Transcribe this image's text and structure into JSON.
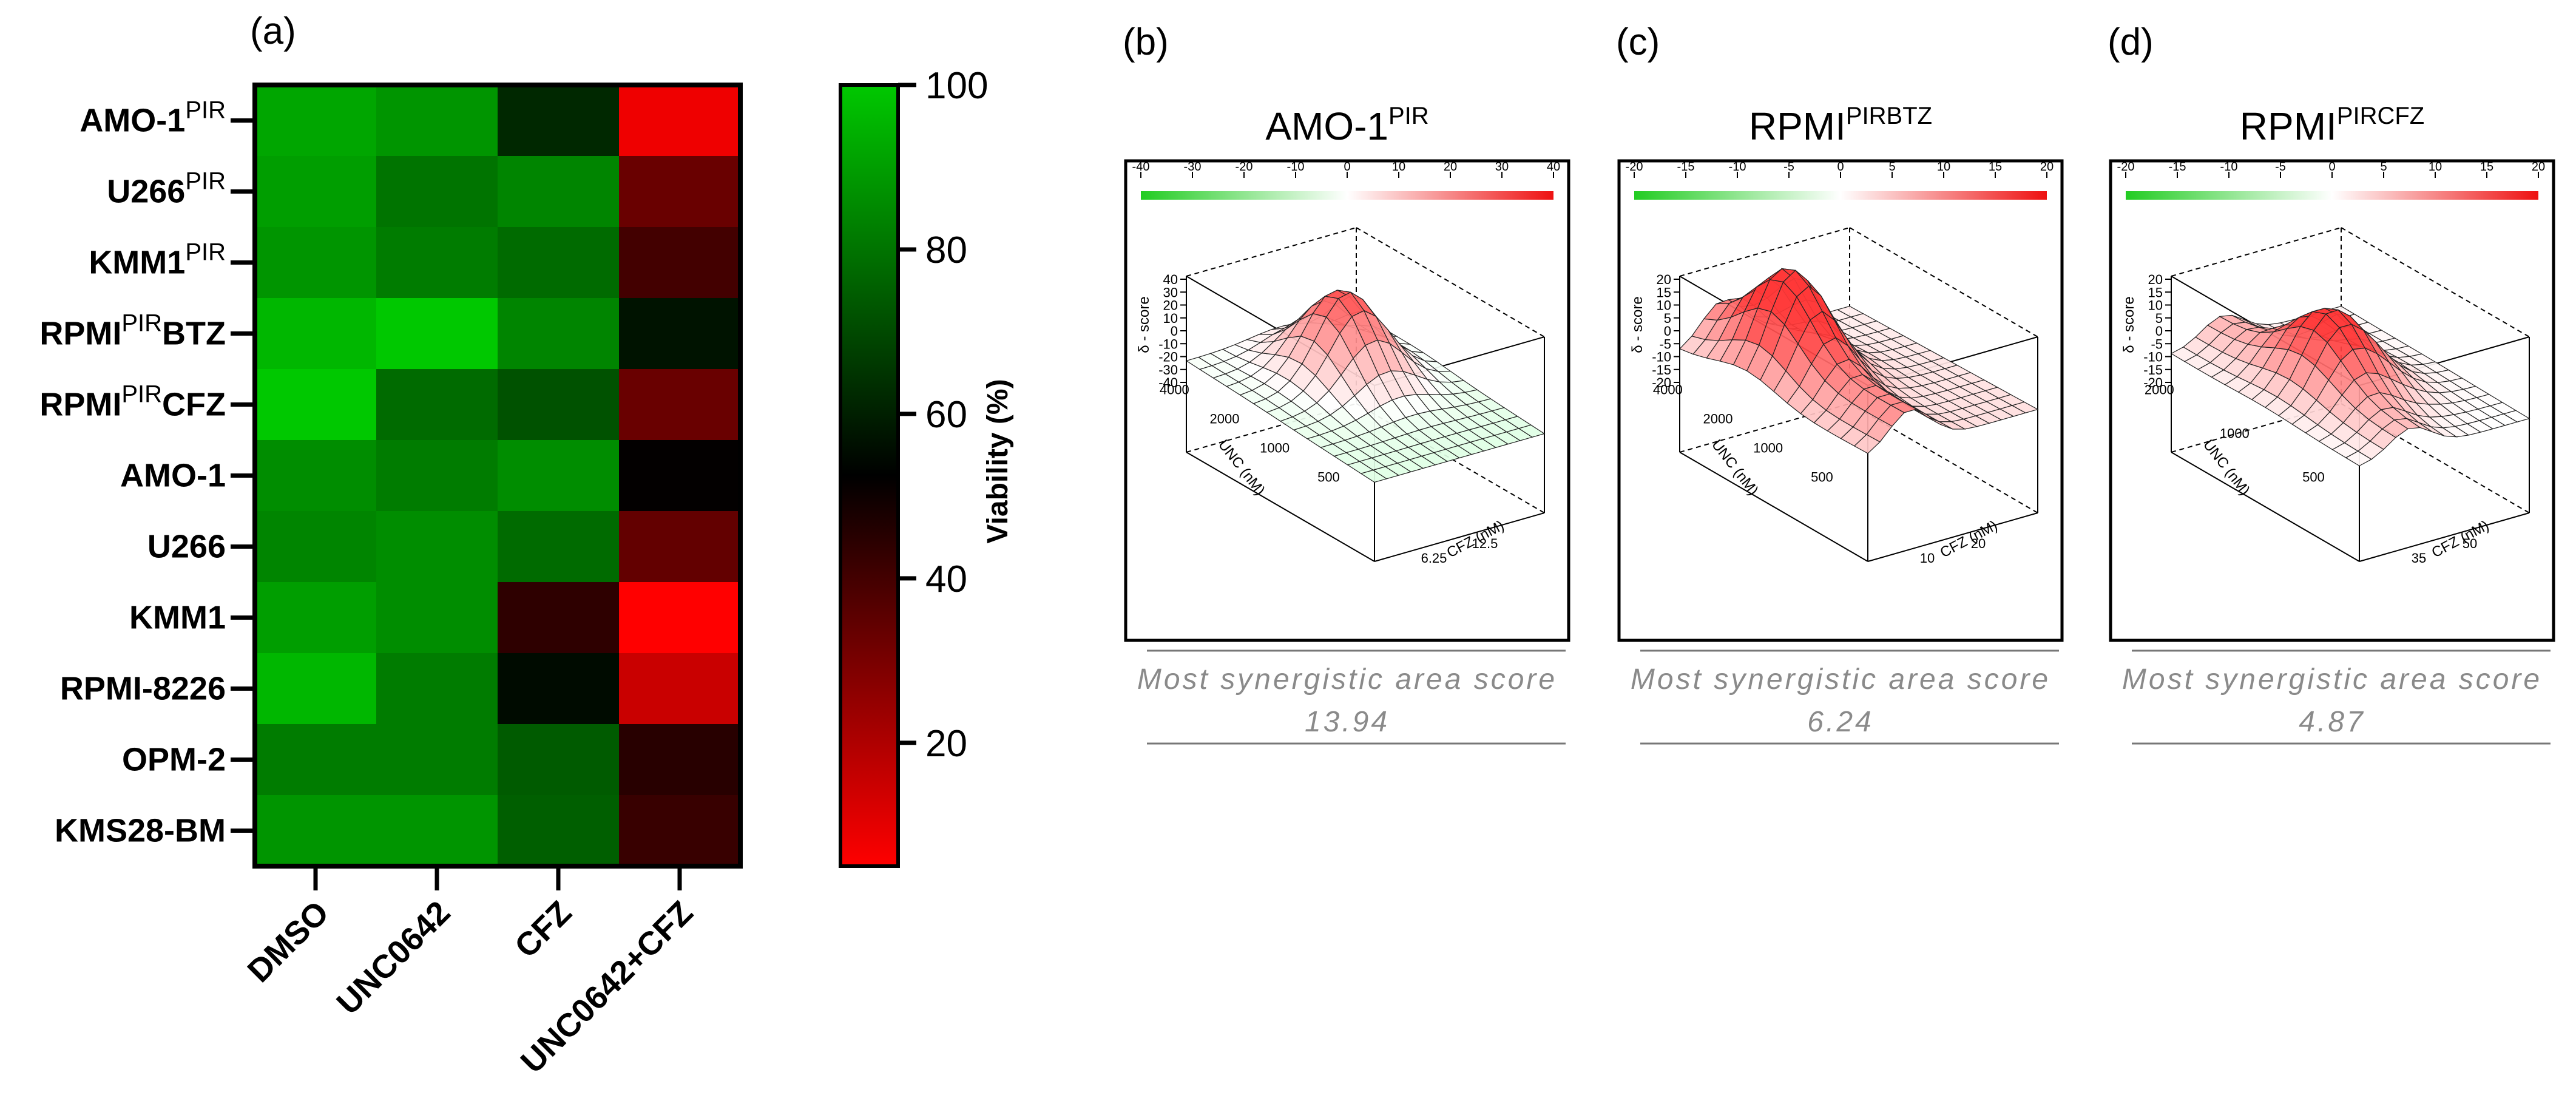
{
  "panel_a": {
    "panel_label": "(a)",
    "colorbar": {
      "title": "Viability (%)",
      "ticks": [
        "100",
        "80",
        "60",
        "40",
        "20"
      ],
      "colors": {
        "low": "#ff0000",
        "mid": "#000000",
        "high": "#00c800"
      }
    }
  },
  "chart_data": [
    {
      "type": "heatmap",
      "rows": [
        {
          "name": "AMO-1",
          "sup": "PIR",
          "suffix": ""
        },
        {
          "name": "U266",
          "sup": "PIR",
          "suffix": ""
        },
        {
          "name": "KMM1",
          "sup": "PIR",
          "suffix": ""
        },
        {
          "name": "RPMI",
          "sup": "PIR",
          "suffix": "BTZ"
        },
        {
          "name": "RPMI",
          "sup": "PIR",
          "suffix": "CFZ"
        },
        {
          "name": "AMO-1",
          "sup": "",
          "suffix": ""
        },
        {
          "name": "U266",
          "sup": "",
          "suffix": ""
        },
        {
          "name": "KMM1",
          "sup": "",
          "suffix": ""
        },
        {
          "name": "RPMI-8226",
          "sup": "",
          "suffix": ""
        },
        {
          "name": "OPM-2",
          "sup": "",
          "suffix": ""
        },
        {
          "name": "KMS28-BM",
          "sup": "",
          "suffix": ""
        }
      ],
      "columns": [
        "DMSO",
        "UNC0642",
        "CFZ",
        "UNC0642+CFZ"
      ],
      "values": [
        [
          92,
          88,
          62,
          8
        ],
        [
          90,
          80,
          84,
          33
        ],
        [
          88,
          82,
          78,
          40
        ],
        [
          96,
          100,
          84,
          57
        ],
        [
          100,
          78,
          72,
          33
        ],
        [
          86,
          82,
          86,
          52
        ],
        [
          84,
          86,
          78,
          34
        ],
        [
          90,
          86,
          44,
          5
        ],
        [
          96,
          82,
          55,
          15
        ],
        [
          82,
          82,
          74,
          45
        ],
        [
          88,
          88,
          75,
          42
        ]
      ],
      "zlim": [
        5,
        100
      ],
      "colorbar_label": "Viability (%)"
    },
    {
      "type": "surface",
      "panel_label": "(b)",
      "title": {
        "base": "AMO-1",
        "sup": "PIR"
      },
      "scale_ticks": [
        "-40",
        "-30",
        "-20",
        "-10",
        "0",
        "10",
        "20",
        "30",
        "40"
      ],
      "zlabel": "δ - score",
      "z_ticks": [
        "40",
        "30",
        "20",
        "10",
        "0",
        "-10",
        "-20",
        "-30",
        "-40"
      ],
      "y_axis_label": "UNC (nM)",
      "y_ticks": [
        "4000",
        "2000",
        "1000",
        "500"
      ],
      "x_axis_label": "CFZ (nM)",
      "x_ticks": [
        "6.25",
        "12.5"
      ],
      "caption": "Most synergistic area score",
      "score": "13.94"
    },
    {
      "type": "surface",
      "panel_label": "(c)",
      "title": {
        "base": "RPMI",
        "sup": "PIRBTZ"
      },
      "scale_ticks": [
        "-20",
        "-15",
        "-10",
        "-5",
        "0",
        "5",
        "10",
        "15",
        "20"
      ],
      "zlabel": "δ - score",
      "z_ticks": [
        "20",
        "15",
        "10",
        "5",
        "0",
        "-5",
        "-10",
        "-15",
        "-20"
      ],
      "y_axis_label": "UNC (nM)",
      "y_ticks": [
        "4000",
        "2000",
        "1000",
        "500"
      ],
      "x_axis_label": "CFZ (nM)",
      "x_ticks": [
        "10",
        "20"
      ],
      "caption": "Most synergistic area score",
      "score": "6.24"
    },
    {
      "type": "surface",
      "panel_label": "(d)",
      "title": {
        "base": "RPMI",
        "sup": "PIRCFZ"
      },
      "scale_ticks": [
        "-20",
        "-15",
        "-10",
        "-5",
        "0",
        "5",
        "10",
        "15",
        "20"
      ],
      "zlabel": "δ - score",
      "z_ticks": [
        "20",
        "15",
        "10",
        "5",
        "0",
        "-5",
        "-10",
        "-15",
        "-20"
      ],
      "y_axis_label": "UNC (nM)",
      "y_ticks": [
        "2000",
        "1000",
        "500"
      ],
      "x_axis_label": "CFZ (nM)",
      "x_ticks": [
        "35",
        "50"
      ],
      "caption": "Most synergistic area score",
      "score": "4.87"
    }
  ]
}
